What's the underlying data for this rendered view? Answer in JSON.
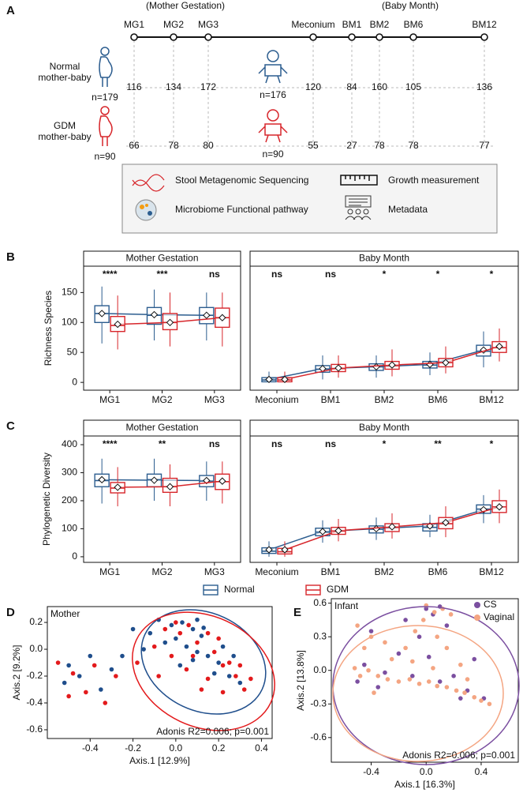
{
  "panel_a": {
    "label": "A",
    "periods": [
      "(Mother Gestation)",
      "(Baby Month)"
    ],
    "timepoints": [
      "MG1",
      "MG2",
      "MG3",
      "Meconium",
      "BM1",
      "BM2",
      "BM6",
      "BM12"
    ],
    "groups": [
      {
        "lines": [
          "Normal",
          "mother-baby"
        ],
        "mother_n": "n=179",
        "baby_n": "n=176",
        "counts": [
          116,
          134,
          172,
          120,
          84,
          160,
          105,
          136
        ]
      },
      {
        "lines": [
          "GDM",
          "mother-baby"
        ],
        "mother_n": "n=90",
        "baby_n": "n=90",
        "counts": [
          66,
          78,
          80,
          55,
          27,
          78,
          78,
          77
        ]
      }
    ],
    "legend": [
      "Stool Metagenomic Sequencing",
      "Growth measurement",
      "Microbiome Functional pathway",
      "Metadata"
    ]
  },
  "box_groups": [
    {
      "name": "Normal",
      "color": "#2c5d8f"
    },
    {
      "name": "GDM",
      "color": "#d7262b"
    }
  ],
  "chart_data": [
    {
      "type": "box",
      "label": "B",
      "y_label": "Richness Species",
      "ylim": [
        -13,
        194
      ],
      "yticks": [
        0,
        50,
        100,
        150
      ],
      "facets": [
        {
          "title": "Mother Gestation",
          "categories": [
            "MG1",
            "MG2",
            "MG3"
          ],
          "significance": [
            "****",
            "***",
            "ns"
          ],
          "series": [
            [
              {
                "low": 65,
                "q1": 100,
                "median": 115,
                "q3": 128,
                "high": 160,
                "mean": 115
              },
              {
                "low": 70,
                "q1": 97,
                "median": 112,
                "q3": 125,
                "high": 155,
                "mean": 113
              },
              {
                "low": 70,
                "q1": 98,
                "median": 112,
                "q3": 125,
                "high": 150,
                "mean": 112
              }
            ],
            [
              {
                "low": 55,
                "q1": 85,
                "median": 95,
                "q3": 110,
                "high": 145,
                "mean": 97
              },
              {
                "low": 60,
                "q1": 88,
                "median": 100,
                "q3": 115,
                "high": 150,
                "mean": 100
              },
              {
                "low": 60,
                "q1": 92,
                "median": 108,
                "q3": 124,
                "high": 150,
                "mean": 108
              }
            ]
          ]
        },
        {
          "title": "Baby Month",
          "categories": [
            "Meconium",
            "BM1",
            "BM2",
            "BM6",
            "BM12"
          ],
          "significance": [
            "ns",
            "ns",
            "*",
            "*",
            "*"
          ],
          "series": [
            [
              {
                "low": 0,
                "q1": 1,
                "median": 4,
                "q3": 8,
                "high": 18,
                "mean": 5
              },
              {
                "low": 5,
                "q1": 17,
                "median": 22,
                "q3": 28,
                "high": 45,
                "mean": 23
              },
              {
                "low": 8,
                "q1": 20,
                "median": 26,
                "q3": 31,
                "high": 45,
                "mean": 26
              },
              {
                "low": 12,
                "q1": 24,
                "median": 29,
                "q3": 35,
                "high": 50,
                "mean": 30
              },
              {
                "low": 25,
                "q1": 44,
                "median": 52,
                "q3": 62,
                "high": 85,
                "mean": 54
              }
            ],
            [
              {
                "low": 0,
                "q1": 1,
                "median": 4,
                "q3": 8,
                "high": 18,
                "mean": 5
              },
              {
                "low": 8,
                "q1": 18,
                "median": 23,
                "q3": 30,
                "high": 45,
                "mean": 24
              },
              {
                "low": 10,
                "q1": 22,
                "median": 28,
                "q3": 35,
                "high": 55,
                "mean": 29
              },
              {
                "low": 15,
                "q1": 26,
                "median": 33,
                "q3": 40,
                "high": 60,
                "mean": 33
              },
              {
                "low": 35,
                "q1": 50,
                "median": 58,
                "q3": 68,
                "high": 90,
                "mean": 60
              }
            ]
          ]
        }
      ]
    },
    {
      "type": "box",
      "label": "C",
      "y_label": "Phylogenetic Diversity",
      "ylim": [
        -20,
        431
      ],
      "yticks": [
        0,
        100,
        200,
        300,
        400
      ],
      "facets": [
        {
          "title": "Mother Gestation",
          "categories": [
            "MG1",
            "MG2",
            "MG3"
          ],
          "significance": [
            "****",
            "**",
            "ns"
          ],
          "series": [
            [
              {
                "low": 190,
                "q1": 250,
                "median": 272,
                "q3": 295,
                "high": 350,
                "mean": 275
              },
              {
                "low": 200,
                "q1": 250,
                "median": 275,
                "q3": 295,
                "high": 350,
                "mean": 273
              },
              {
                "low": 200,
                "q1": 250,
                "median": 270,
                "q3": 290,
                "high": 340,
                "mean": 272
              }
            ],
            [
              {
                "low": 180,
                "q1": 228,
                "median": 245,
                "q3": 265,
                "high": 320,
                "mean": 248
              },
              {
                "low": 180,
                "q1": 230,
                "median": 250,
                "q3": 280,
                "high": 330,
                "mean": 250
              },
              {
                "low": 190,
                "q1": 240,
                "median": 268,
                "q3": 295,
                "high": 340,
                "mean": 270
              }
            ]
          ]
        },
        {
          "title": "Baby Month",
          "categories": [
            "Meconium",
            "BM1",
            "BM2",
            "BM6",
            "BM12"
          ],
          "significance": [
            "ns",
            "ns",
            "*",
            "**",
            "*"
          ],
          "series": [
            [
              {
                "low": 0,
                "q1": 12,
                "median": 20,
                "q3": 32,
                "high": 55,
                "mean": 25
              },
              {
                "low": 50,
                "q1": 75,
                "median": 88,
                "q3": 102,
                "high": 130,
                "mean": 90
              },
              {
                "low": 60,
                "q1": 85,
                "median": 98,
                "q3": 110,
                "high": 140,
                "mean": 100
              },
              {
                "low": 70,
                "q1": 92,
                "median": 105,
                "q3": 118,
                "high": 150,
                "mean": 110
              },
              {
                "low": 120,
                "q1": 155,
                "median": 170,
                "q3": 185,
                "high": 220,
                "mean": 168
              }
            ],
            [
              {
                "low": 0,
                "q1": 10,
                "median": 18,
                "q3": 30,
                "high": 55,
                "mean": 25
              },
              {
                "low": 55,
                "q1": 80,
                "median": 92,
                "q3": 105,
                "high": 135,
                "mean": 93
              },
              {
                "low": 65,
                "q1": 90,
                "median": 105,
                "q3": 118,
                "high": 155,
                "mean": 107
              },
              {
                "low": 70,
                "q1": 100,
                "median": 118,
                "q3": 140,
                "high": 180,
                "mean": 122
              },
              {
                "low": 120,
                "q1": 158,
                "median": 178,
                "q3": 200,
                "high": 240,
                "mean": 178
              }
            ]
          ]
        }
      ]
    },
    {
      "type": "scatter",
      "label": "D",
      "annotation": "Mother",
      "note": "Adonis R2=0.006; p=0.001",
      "x_label": "Axis.1   [12.9%]",
      "y_label": "Axis.2   [9.2%]",
      "xlim": [
        -0.6,
        0.45
      ],
      "xticks": [
        -0.4,
        -0.2,
        {
          "value": 0,
          "label": "0.0"
        },
        0.2,
        0.4
      ],
      "ylim": [
        -0.665,
        0.318
      ],
      "yticks": [
        -0.6,
        -0.4,
        -0.2,
        {
          "value": 0,
          "label": "0.0"
        },
        0.2
      ],
      "series": [
        {
          "name": "Normal",
          "color": "#1f4e8c",
          "x": [
            -0.08,
            -0.02,
            0.03,
            0.08,
            0.12,
            0.0,
            0.05,
            0.1,
            0.15,
            0.2,
            0.18,
            0.25,
            0.3,
            0.08,
            -0.05,
            -0.12,
            0.02,
            0.22,
            0.13,
            -0.15,
            -0.25,
            -0.5,
            -0.45,
            -0.4,
            -0.35,
            -0.52,
            -0.3,
            0.27,
            -0.2,
            0.1
          ],
          "y": [
            0.22,
            0.18,
            0.2,
            0.15,
            0.1,
            0.08,
            0.02,
            -0.02,
            -0.05,
            -0.1,
            -0.18,
            -0.2,
            -0.25,
            -0.08,
            0.05,
            0.12,
            -0.12,
            0.02,
            0.16,
            0.0,
            -0.05,
            -0.12,
            -0.2,
            -0.05,
            -0.3,
            -0.25,
            -0.15,
            -0.05,
            0.15,
            0.22
          ]
        },
        {
          "name": "GDM",
          "color": "#e31a1c",
          "x": [
            -0.05,
            0.02,
            0.1,
            0.18,
            0.22,
            0.28,
            0.32,
            0.15,
            0.05,
            -0.02,
            0.12,
            0.25,
            0.06,
            -0.1,
            0.2,
            -0.18,
            -0.28,
            -0.48,
            -0.42,
            -0.5,
            -0.38,
            -0.33,
            0.3,
            0.0,
            0.15,
            -0.08,
            0.22,
            -0.55,
            0.08,
            0.35
          ],
          "y": [
            0.15,
            0.12,
            0.05,
            -0.02,
            -0.12,
            -0.2,
            -0.3,
            -0.22,
            -0.15,
            -0.05,
            -0.3,
            -0.1,
            0.18,
            0.02,
            0.08,
            -0.1,
            -0.2,
            -0.18,
            -0.32,
            -0.35,
            -0.12,
            -0.4,
            -0.12,
            0.2,
            0.12,
            -0.2,
            -0.32,
            -0.1,
            -0.05,
            -0.22
          ]
        }
      ]
    },
    {
      "type": "scatter",
      "label": "E",
      "annotation": "Infant",
      "note": "Adonis R2=0.006; p=0.001",
      "x_label": "Axis.1   [16.3%]",
      "y_label": "Axis.2   [13.8%]",
      "legend": "top-right",
      "xlim": [
        -0.69,
        0.67
      ],
      "xticks": [
        -0.4,
        {
          "value": 0,
          "label": "0.0"
        },
        0.4
      ],
      "ylim": [
        -0.82,
        0.64
      ],
      "yticks": [
        -0.6,
        -0.3,
        {
          "value": 0,
          "label": "0.0"
        },
        0.3,
        0.6
      ],
      "series": [
        {
          "name": "CS",
          "color": "#7b4fa0",
          "x": [
            -0.45,
            -0.3,
            -0.1,
            0.1,
            0.3,
            0.42,
            0.0,
            0.05,
            0.1,
            -0.05,
            -0.2,
            -0.4,
            0.2,
            -0.35,
            0.15,
            0.35,
            -0.15,
            0.25,
            -0.5,
            0.02
          ],
          "y": [
            0.05,
            -0.02,
            -0.05,
            -0.1,
            -0.18,
            -0.25,
            0.55,
            0.5,
            0.57,
            0.3,
            0.15,
            0.35,
            -0.05,
            -0.15,
            0.4,
            0.1,
            0.45,
            -0.25,
            -0.1,
            0.12
          ]
        },
        {
          "name": "Vaginal",
          "color": "#f4a582",
          "x": [
            -0.52,
            -0.48,
            -0.42,
            -0.35,
            -0.28,
            -0.2,
            -0.12,
            -0.05,
            0.02,
            0.08,
            0.15,
            0.22,
            0.28,
            0.35,
            0.4,
            0.46,
            -0.45,
            -0.4,
            -0.5,
            -0.3,
            -0.25,
            -0.15,
            -0.08,
            -0.02,
            0.0,
            0.06,
            0.12,
            0.18,
            0.08,
            0.15,
            0.25,
            -0.38,
            -0.1,
            0.05,
            0.3
          ],
          "y": [
            0.02,
            -0.05,
            0.0,
            -0.05,
            -0.08,
            -0.1,
            -0.08,
            -0.12,
            -0.1,
            -0.14,
            -0.15,
            -0.18,
            -0.2,
            -0.24,
            -0.27,
            -0.3,
            0.2,
            0.3,
            0.4,
            0.25,
            0.1,
            0.2,
            0.35,
            0.45,
            0.58,
            0.52,
            0.55,
            0.5,
            0.3,
            0.2,
            0.05,
            -0.2,
            0.08,
            0.02,
            -0.08
          ]
        }
      ]
    }
  ]
}
